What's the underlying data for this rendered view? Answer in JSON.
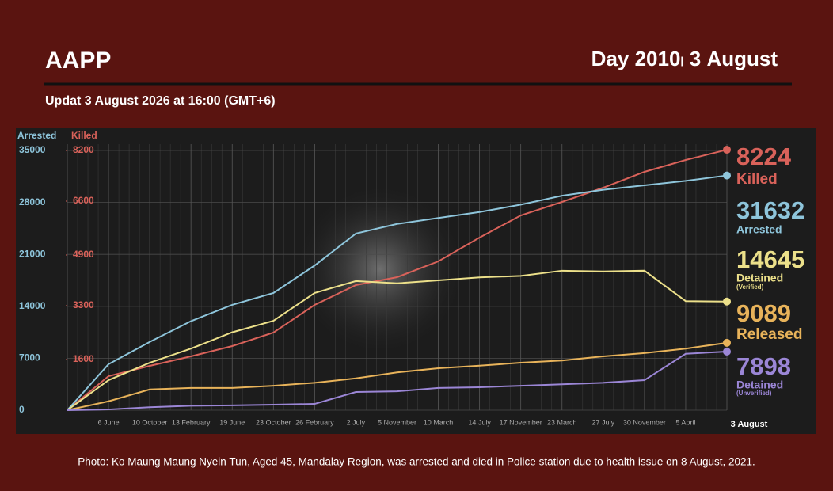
{
  "header": {
    "title": "AAPP",
    "day": "Day 2010၊ 3 August",
    "subtitle": "Updat 3 August 2026 at 16:00 (GMT+6)"
  },
  "chart_data": {
    "type": "line",
    "y_axis_label": "Arrested",
    "y2_axis_label": "Killed",
    "categories": [
      null,
      "6 June",
      "10 October",
      "13 February",
      "19 June",
      "23 October",
      "26 February",
      "2 July",
      "5 November",
      "10 March",
      "14 July",
      "17 November",
      "23 March",
      "27 July",
      "30 November",
      "5 April",
      "3 August"
    ],
    "ylim": [
      0,
      35000
    ],
    "yticks": [
      0,
      7000,
      14000,
      21000,
      28000,
      35000
    ],
    "y2lim": [
      0,
      8200
    ],
    "y2ticks": [
      1600,
      3300,
      4900,
      6600,
      8200
    ],
    "grid": true,
    "series": [
      {
        "name": "Killed",
        "color": "#d9625a",
        "axis": "y2",
        "values": [
          0,
          1075,
          1400,
          1700,
          2025,
          2450,
          3325,
          3950,
          4200,
          4700,
          5450,
          6150,
          6575,
          7025,
          7525,
          7900,
          8224
        ]
      },
      {
        "name": "Arrested",
        "color": "#8ec5db",
        "values": [
          0,
          6200,
          9200,
          12000,
          14200,
          15800,
          19500,
          23800,
          25100,
          25900,
          26700,
          27700,
          28900,
          29700,
          30300,
          30900,
          31632
        ]
      },
      {
        "name": "Detained",
        "qualifier": "(Verified)",
        "color": "#ece08a",
        "values": [
          0,
          4050,
          6400,
          8300,
          10500,
          12050,
          15800,
          17400,
          17100,
          17500,
          17900,
          18100,
          18800,
          18700,
          18800,
          14700,
          14645
        ]
      },
      {
        "name": "Released",
        "color": "#e8b35a",
        "values": [
          0,
          1200,
          2800,
          3000,
          3000,
          3300,
          3700,
          4300,
          5100,
          5650,
          6000,
          6400,
          6700,
          7250,
          7700,
          8300,
          9089
        ]
      },
      {
        "name": "Detained",
        "qualifier": "(Unverified)",
        "color": "#9b86d6",
        "values": [
          0,
          100,
          400,
          600,
          650,
          750,
          850,
          2450,
          2550,
          3000,
          3100,
          3300,
          3500,
          3700,
          4050,
          7600,
          7898
        ]
      }
    ]
  },
  "caption": "Photo: Ko Maung Maung Nyein Tun, Aged 45, Mandalay Region, was arrested and died in Police station due to health issue on 8 August, 2021."
}
